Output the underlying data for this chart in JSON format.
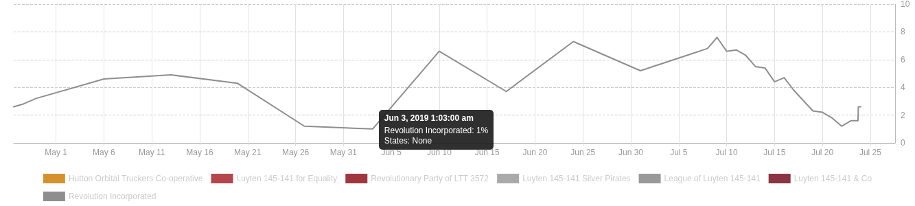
{
  "chart_data": {
    "type": "line",
    "x": [
      "2019-04-26T14:00",
      "2019-04-27T14:00",
      "2019-04-28T22:00",
      "2019-05-06",
      "2019-05-13",
      "2019-05-19T22:00",
      "2019-05-26T22:00",
      "2019-06-03T01:03",
      "2019-06-10",
      "2019-06-17",
      "2019-06-24",
      "2019-07-01",
      "2019-07-08",
      "2019-07-09",
      "2019-07-10",
      "2019-07-11",
      "2019-07-12",
      "2019-07-13",
      "2019-07-14",
      "2019-07-15",
      "2019-07-16",
      "2019-07-17",
      "2019-07-19",
      "2019-07-20",
      "2019-07-21",
      "2019-07-22",
      "2019-07-23",
      "2019-07-23T17:00",
      "2019-07-23T18:00",
      "2019-07-24"
    ],
    "series": [
      {
        "name": "Hutton Orbital Truckers Co-operative",
        "color": "#d4922e",
        "values": [
          null,
          null,
          null,
          null,
          null,
          null,
          null,
          null,
          null,
          null,
          null,
          null,
          null,
          null,
          null,
          null,
          null,
          null,
          null,
          null,
          null,
          null,
          null,
          null,
          null,
          null,
          null,
          null,
          null,
          null
        ]
      },
      {
        "name": "Luyten 145-141 for Equality",
        "color": "#b5454a",
        "values": [
          null,
          null,
          null,
          null,
          null,
          null,
          null,
          null,
          null,
          null,
          null,
          null,
          null,
          null,
          null,
          null,
          null,
          null,
          null,
          null,
          null,
          null,
          null,
          null,
          null,
          null,
          null,
          null,
          null,
          null
        ]
      },
      {
        "name": "Revolutionary Party of LTT 3572",
        "color": "#a0373f",
        "values": [
          null,
          null,
          null,
          null,
          null,
          null,
          null,
          null,
          null,
          null,
          null,
          null,
          null,
          null,
          null,
          null,
          null,
          null,
          null,
          null,
          null,
          null,
          null,
          null,
          null,
          null,
          null,
          null,
          null,
          null
        ]
      },
      {
        "name": "Luyten 145-141 Silver Pirates",
        "color": "#aaaaaa",
        "values": [
          null,
          null,
          null,
          null,
          null,
          null,
          null,
          null,
          null,
          null,
          null,
          null,
          null,
          null,
          null,
          null,
          null,
          null,
          null,
          null,
          null,
          null,
          null,
          null,
          null,
          null,
          null,
          null,
          null,
          null
        ]
      },
      {
        "name": "League of Luyten 145-141",
        "color": "#999999",
        "values": [
          null,
          null,
          null,
          null,
          null,
          null,
          null,
          null,
          null,
          null,
          null,
          null,
          null,
          null,
          null,
          null,
          null,
          null,
          null,
          null,
          null,
          null,
          null,
          null,
          null,
          null,
          null,
          null,
          null,
          null
        ]
      },
      {
        "name": "Luyten 145-141 & Co",
        "color": "#8b3442",
        "values": [
          null,
          null,
          null,
          null,
          null,
          null,
          null,
          null,
          null,
          null,
          null,
          null,
          null,
          null,
          null,
          null,
          null,
          null,
          null,
          null,
          null,
          null,
          null,
          null,
          null,
          null,
          null,
          null,
          null,
          null
        ]
      },
      {
        "name": "Revolution Incorporated",
        "color": "#8e8e8e",
        "values": [
          2.6,
          2.8,
          3.2,
          4.6,
          4.9,
          4.3,
          1.2,
          1.0,
          6.6,
          3.7,
          7.3,
          5.2,
          6.8,
          7.6,
          6.6,
          6.7,
          6.3,
          5.5,
          5.4,
          4.4,
          4.7,
          3.8,
          2.3,
          2.2,
          1.8,
          1.2,
          1.6,
          1.6,
          2.6,
          2.6
        ]
      }
    ],
    "xlim": [
      "2019-04-26T14:00",
      "2019-07-27T14:00"
    ],
    "xticks": [
      {
        "value": "2019-05-01",
        "label": "May 1"
      },
      {
        "value": "2019-05-06",
        "label": "May 6"
      },
      {
        "value": "2019-05-11",
        "label": "May 11"
      },
      {
        "value": "2019-05-16",
        "label": "May 16"
      },
      {
        "value": "2019-05-21",
        "label": "May 21"
      },
      {
        "value": "2019-05-26",
        "label": "May 26"
      },
      {
        "value": "2019-05-31",
        "label": "May 31"
      },
      {
        "value": "2019-06-05",
        "label": "Jun 5"
      },
      {
        "value": "2019-06-10",
        "label": "Jun 10"
      },
      {
        "value": "2019-06-15",
        "label": "Jun 15"
      },
      {
        "value": "2019-06-20",
        "label": "Jun 20"
      },
      {
        "value": "2019-06-25",
        "label": "Jun 25"
      },
      {
        "value": "2019-06-30",
        "label": "Jun 30"
      },
      {
        "value": "2019-07-05",
        "label": "Jul 5"
      },
      {
        "value": "2019-07-10",
        "label": "Jul 10"
      },
      {
        "value": "2019-07-15",
        "label": "Jul 15"
      },
      {
        "value": "2019-07-20",
        "label": "Jul 20"
      },
      {
        "value": "2019-07-25",
        "label": "Jul 25"
      }
    ],
    "ylim": [
      0,
      10
    ],
    "yticks": [
      0,
      2,
      4,
      6,
      8,
      10
    ],
    "grid": true,
    "legend": "bottom",
    "marker": "none",
    "line_style": "solid",
    "annotations": [
      {
        "text": "Jun 3, 2019 1:03:00 am\nRevolution Incorporated: 1%\nStates: None",
        "x": "2019-06-03T01:03",
        "y": 1.0
      }
    ]
  }
}
